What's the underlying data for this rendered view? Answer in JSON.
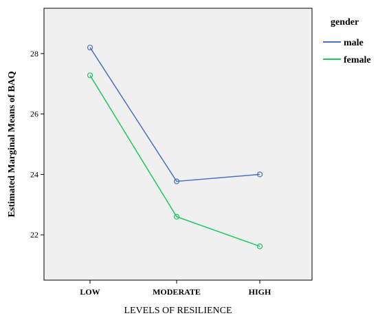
{
  "chart_data": {
    "type": "line",
    "title": "",
    "xlabel": "LEVELS OF RESILIENCE",
    "ylabel": "Estimated Marginal Means of BAQ",
    "categories": [
      "LOW",
      "MODERATE",
      "HIGH"
    ],
    "yticks": [
      22,
      24,
      26,
      28
    ],
    "ylim": [
      20.5,
      29.5
    ],
    "grid": false,
    "legend": {
      "title": "gender",
      "placement": "right"
    },
    "series": [
      {
        "name": "male",
        "color": "#4a6fc4",
        "values": [
          28.2,
          23.77,
          24.0
        ]
      },
      {
        "name": "female",
        "color": "#1ec75a",
        "values": [
          27.28,
          22.6,
          21.62
        ]
      }
    ]
  }
}
